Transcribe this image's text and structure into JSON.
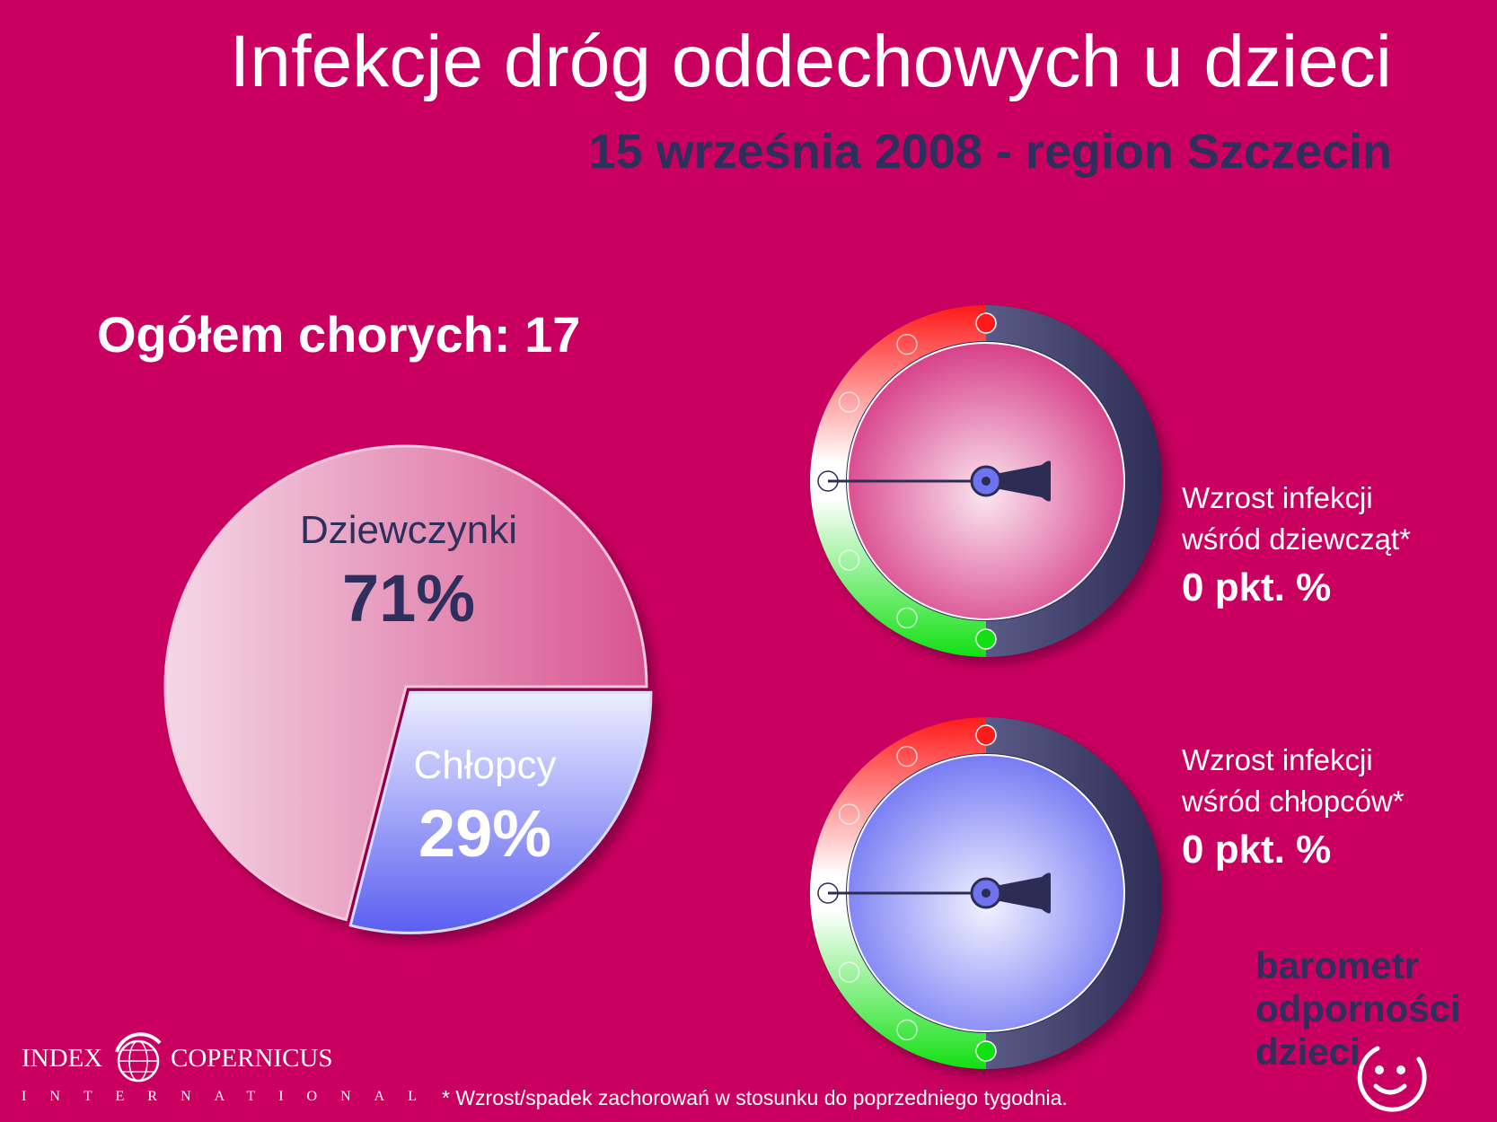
{
  "title": "Infekcje dróg oddechowych u dzieci",
  "subtitle": "15 września 2008 - region Szczecin",
  "total_label": "Ogółem chorych: 17",
  "chart_data": [
    {
      "type": "pie",
      "categories": [
        "Dziewczynki",
        "Chłopcy"
      ],
      "values": [
        71,
        29
      ],
      "value_labels": [
        "71%",
        "29%"
      ],
      "colors": [
        "#e07aaa",
        "#7b80f0"
      ]
    },
    {
      "type": "gauge",
      "label_line1": "Wzrost infekcji",
      "label_line2": "wśród dziewcząt*",
      "value": 0,
      "value_label": "0 pkt. %",
      "face_color": "#d83d8c"
    },
    {
      "type": "gauge",
      "label_line1": "Wzrost infekcji",
      "label_line2": "wśród chłopców*",
      "value": 0,
      "value_label": "0 pkt. %",
      "face_color": "#7b80f4"
    }
  ],
  "footnote": "* Wzrost/spadek zachorowań w stosunku do poprzedniego tygodnia.",
  "brand": {
    "line1": "barometr",
    "line2": "odporności",
    "line3": "dzieci"
  },
  "logo": {
    "left": "INDEX",
    "right": "COPERNICUS",
    "sub": "INTERNATIONAL"
  }
}
